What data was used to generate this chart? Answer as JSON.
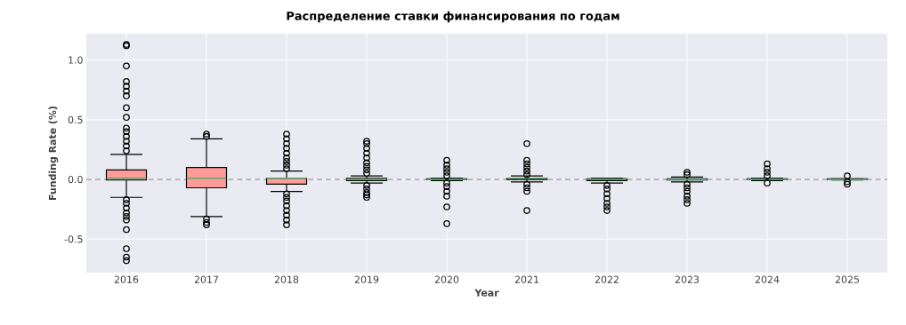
{
  "chart_data": {
    "type": "box",
    "title": "Распределение ставки финансирования по годам",
    "xlabel": "Year",
    "ylabel": "Funding Rate (%)",
    "categories": [
      "2016",
      "2017",
      "2018",
      "2019",
      "2020",
      "2021",
      "2022",
      "2023",
      "2024",
      "2025"
    ],
    "color": "#ff9c9a",
    "boxes": [
      {
        "low": -0.15,
        "q1": -0.005,
        "median": 0.01,
        "q3": 0.08,
        "high": 0.21,
        "outliers": [
          0.24,
          0.28,
          0.32,
          0.36,
          0.4,
          0.43,
          0.52,
          0.6,
          0.7,
          0.74,
          0.78,
          0.82,
          0.95,
          1.12,
          1.13,
          -0.17,
          -0.2,
          -0.24,
          -0.28,
          -0.31,
          -0.34,
          -0.42,
          -0.58,
          -0.65,
          -0.68
        ]
      },
      {
        "low": -0.31,
        "q1": -0.07,
        "median": 0.01,
        "q3": 0.1,
        "high": 0.34,
        "outliers": [
          0.36,
          0.38,
          -0.33,
          -0.36,
          -0.38
        ]
      },
      {
        "low": -0.1,
        "q1": -0.04,
        "median": 0.01,
        "q3": 0.01,
        "high": 0.07,
        "outliers": [
          0.09,
          0.12,
          0.15,
          0.18,
          0.22,
          0.26,
          0.3,
          0.34,
          0.38,
          -0.12,
          -0.15,
          -0.18,
          -0.22,
          -0.26,
          -0.3,
          -0.34,
          -0.38
        ]
      },
      {
        "low": -0.03,
        "q1": -0.01,
        "median": 0.0,
        "q3": 0.01,
        "high": 0.03,
        "outliers": [
          0.05,
          0.08,
          0.11,
          0.14,
          0.18,
          0.22,
          0.26,
          0.3,
          0.32,
          -0.05,
          -0.08,
          -0.11,
          -0.13,
          -0.15
        ]
      },
      {
        "low": -0.01,
        "q1": -0.002,
        "median": 0.0,
        "q3": 0.005,
        "high": 0.01,
        "outliers": [
          0.03,
          0.06,
          0.09,
          0.12,
          0.16,
          -0.03,
          -0.06,
          -0.1,
          -0.14,
          -0.23,
          -0.37
        ]
      },
      {
        "low": -0.02,
        "q1": 0.0,
        "median": 0.01,
        "q3": 0.01,
        "high": 0.03,
        "outliers": [
          0.04,
          0.07,
          0.1,
          0.13,
          0.16,
          0.3,
          -0.04,
          -0.07,
          -0.1,
          -0.26
        ]
      },
      {
        "low": -0.03,
        "q1": -0.01,
        "median": 0.0,
        "q3": 0.005,
        "high": 0.01,
        "outliers": [
          -0.05,
          -0.08,
          -0.12,
          -0.16,
          -0.2,
          -0.23,
          -0.26
        ]
      },
      {
        "low": -0.02,
        "q1": -0.005,
        "median": 0.0,
        "q3": 0.005,
        "high": 0.02,
        "outliers": [
          0.04,
          0.06,
          -0.04,
          -0.07,
          -0.1,
          -0.14,
          -0.17,
          -0.2
        ]
      },
      {
        "low": -0.01,
        "q1": 0.0,
        "median": 0.0,
        "q3": 0.005,
        "high": 0.01,
        "outliers": [
          0.03,
          0.06,
          0.09,
          0.13,
          -0.03
        ]
      },
      {
        "low": -0.005,
        "q1": 0.0,
        "median": 0.0,
        "q3": 0.005,
        "high": 0.005,
        "outliers": [
          0.03,
          -0.02,
          -0.04
        ]
      }
    ],
    "ylim": [
      -0.78,
      1.22
    ],
    "yticks": [
      {
        "value": -0.5,
        "label": "-0.5"
      },
      {
        "value": 0,
        "label": "0.0"
      },
      {
        "value": 0.5,
        "label": "0.5"
      },
      {
        "value": 1,
        "label": "1.0"
      }
    ],
    "ref_lines": [
      {
        "axis": "y",
        "value": 0,
        "color": "#b0b0b0",
        "line_style": "dashed"
      }
    ],
    "grid": true,
    "marker": "circle"
  }
}
